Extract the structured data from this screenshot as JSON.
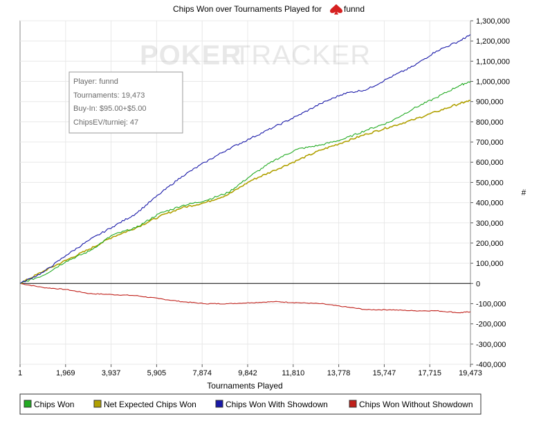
{
  "header": {
    "title_prefix": "Chips Won over Tournaments Played for",
    "title_player": "funnd",
    "spade_icon": "spade-icon"
  },
  "watermark": {
    "text_a": "POKER",
    "text_b": "TRACKER"
  },
  "info_box": {
    "lines": [
      "Player: funnd",
      "Tournaments: 19,473",
      "Buy-In: $95.00+$5.00",
      "ChipsEV/turniej: 47"
    ]
  },
  "colors": {
    "chips_won": "#22aa22",
    "net_expected": "#b0a000",
    "with_showdown": "#1818a8",
    "without_showdown": "#c0201a",
    "zero_line": "#000000"
  },
  "chart_data": {
    "type": "line",
    "title": "Chips Won over Tournaments Played for funnd",
    "xlabel": "Tournaments Played",
    "ylabel": "#",
    "xlim": [
      1,
      19473
    ],
    "ylim": [
      -400000,
      1300000
    ],
    "x_ticks": [
      "1",
      "1,969",
      "3,937",
      "5,905",
      "7,874",
      "9,842",
      "11,810",
      "13,778",
      "15,747",
      "17,715",
      "19,473"
    ],
    "y_ticks": [
      "1,300,000",
      "1,200,000",
      "1,100,000",
      "1,000,000",
      "900,000",
      "800,000",
      "700,000",
      "600,000",
      "500,000",
      "400,000",
      "300,000",
      "200,000",
      "100,000",
      "0",
      "-100,000",
      "-200,000",
      "-300,000",
      "-400,000"
    ],
    "grid": true,
    "legend_position": "bottom",
    "x": [
      1,
      1000,
      2000,
      3000,
      4000,
      5000,
      6000,
      7000,
      8000,
      9000,
      10000,
      11000,
      12000,
      13000,
      14000,
      15000,
      16000,
      17000,
      18000,
      19000,
      19473
    ],
    "series": [
      {
        "name": "Chips Won",
        "color_key": "chips_won",
        "values": [
          0,
          40000,
          110000,
          160000,
          240000,
          275000,
          345000,
          385000,
          410000,
          450000,
          535000,
          610000,
          665000,
          685000,
          715000,
          760000,
          800000,
          865000,
          920000,
          980000,
          1000000
        ]
      },
      {
        "name": "Net Expected Chips Won",
        "color_key": "net_expected",
        "values": [
          0,
          60000,
          115000,
          170000,
          230000,
          275000,
          330000,
          375000,
          400000,
          440000,
          510000,
          560000,
          610000,
          660000,
          700000,
          740000,
          775000,
          810000,
          850000,
          890000,
          905000
        ]
      },
      {
        "name": "Chips Won With Showdown",
        "color_key": "with_showdown",
        "values": [
          0,
          55000,
          140000,
          215000,
          280000,
          345000,
          440000,
          530000,
          600000,
          665000,
          720000,
          775000,
          830000,
          890000,
          940000,
          960000,
          1020000,
          1075000,
          1150000,
          1200000,
          1230000
        ]
      },
      {
        "name": "Chips Won Without Showdown",
        "color_key": "without_showdown",
        "values": [
          0,
          -20000,
          -30000,
          -50000,
          -55000,
          -60000,
          -75000,
          -90000,
          -100000,
          -100000,
          -95000,
          -90000,
          -95000,
          -100000,
          -115000,
          -130000,
          -130000,
          -135000,
          -135000,
          -145000,
          -140000
        ]
      }
    ]
  }
}
